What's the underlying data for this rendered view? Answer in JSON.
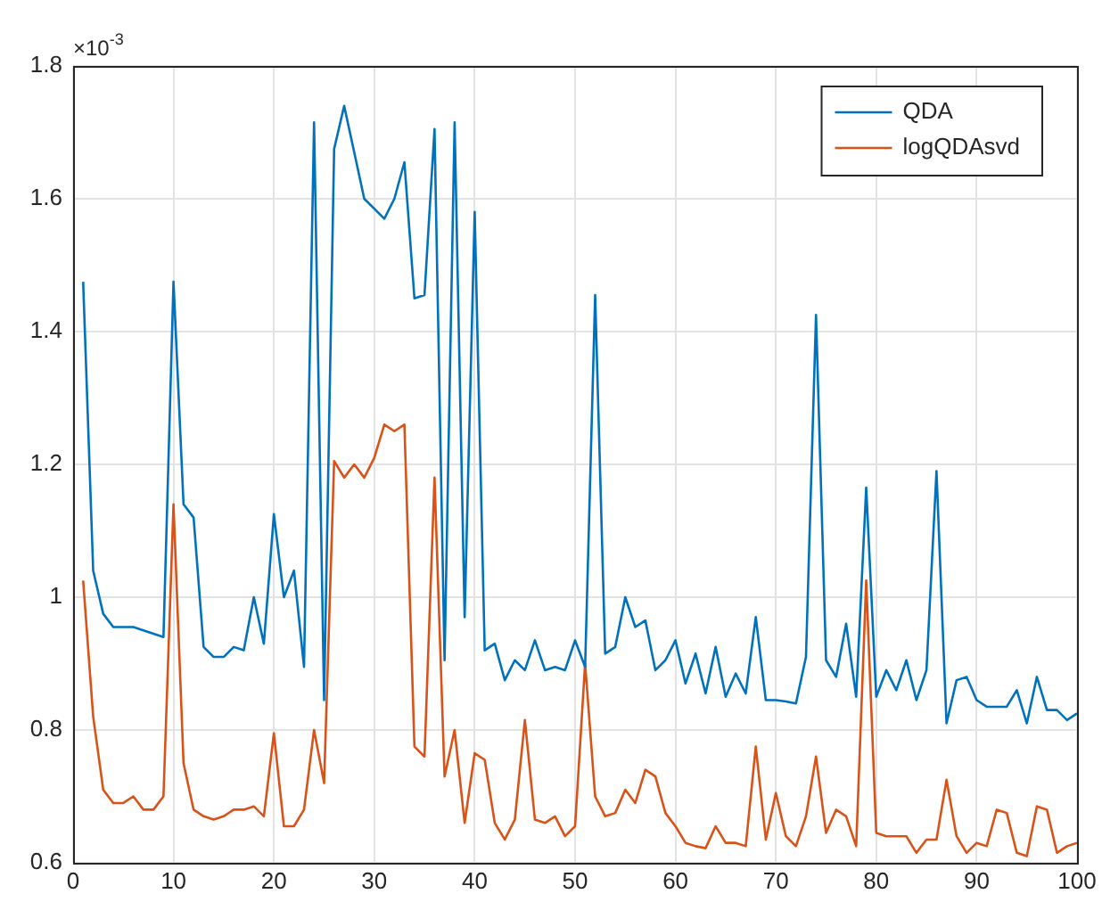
{
  "chart_data": {
    "type": "line",
    "annotations": [
      "×10$^{-3}$"
    ],
    "x": [
      1,
      2,
      3,
      4,
      5,
      6,
      7,
      8,
      9,
      10,
      11,
      12,
      13,
      14,
      15,
      16,
      17,
      18,
      19,
      20,
      21,
      22,
      23,
      24,
      25,
      26,
      27,
      28,
      29,
      30,
      31,
      32,
      33,
      34,
      35,
      36,
      37,
      38,
      39,
      40,
      41,
      42,
      43,
      44,
      45,
      46,
      47,
      48,
      49,
      50,
      51,
      52,
      53,
      54,
      55,
      56,
      57,
      58,
      59,
      60,
      61,
      62,
      63,
      64,
      65,
      66,
      67,
      68,
      69,
      70,
      71,
      72,
      73,
      74,
      75,
      76,
      77,
      78,
      79,
      80,
      81,
      82,
      83,
      84,
      85,
      86,
      87,
      88,
      89,
      90,
      91,
      92,
      93,
      94,
      95,
      96,
      97,
      98,
      99,
      100
    ],
    "series": [
      {
        "name": "QDA",
        "color": "#0072bd",
        "values": [
          1.475,
          1.04,
          0.975,
          0.955,
          0.955,
          0.955,
          0.95,
          0.945,
          0.94,
          1.475,
          1.14,
          1.12,
          0.925,
          0.91,
          0.91,
          0.925,
          0.92,
          1.0,
          0.93,
          1.125,
          1.0,
          1.04,
          0.895,
          1.715,
          0.845,
          1.675,
          1.74,
          1.67,
          1.6,
          1.585,
          1.57,
          1.6,
          1.655,
          1.45,
          1.455,
          1.705,
          0.905,
          1.715,
          0.97,
          1.58,
          0.92,
          0.93,
          0.875,
          0.905,
          0.89,
          0.935,
          0.89,
          0.895,
          0.89,
          0.935,
          0.895,
          1.455,
          0.915,
          0.925,
          1.0,
          0.955,
          0.965,
          0.89,
          0.905,
          0.935,
          0.87,
          0.915,
          0.855,
          0.925,
          0.85,
          0.885,
          0.855,
          0.97,
          0.845,
          0.845,
          0.843,
          0.84,
          0.91,
          1.425,
          0.905,
          0.88,
          0.96,
          0.85,
          1.165,
          0.85,
          0.89,
          0.86,
          0.905,
          0.845,
          0.89,
          1.19,
          0.81,
          0.875,
          0.88,
          0.845,
          0.835,
          0.835,
          0.835,
          0.86,
          0.81,
          0.88,
          0.83,
          0.83,
          0.815,
          0.825
        ]
      },
      {
        "name": "logQDAsvd",
        "color": "#d95319",
        "values": [
          1.025,
          0.82,
          0.71,
          0.69,
          0.69,
          0.7,
          0.68,
          0.68,
          0.7,
          1.14,
          0.75,
          0.68,
          0.67,
          0.665,
          0.67,
          0.68,
          0.68,
          0.685,
          0.67,
          0.795,
          0.655,
          0.655,
          0.68,
          0.8,
          0.72,
          1.205,
          1.18,
          1.2,
          1.18,
          1.21,
          1.26,
          1.25,
          1.26,
          0.775,
          0.76,
          1.18,
          0.73,
          0.8,
          0.66,
          0.765,
          0.755,
          0.66,
          0.635,
          0.665,
          0.815,
          0.665,
          0.66,
          0.67,
          0.64,
          0.655,
          0.9,
          0.7,
          0.67,
          0.675,
          0.71,
          0.69,
          0.74,
          0.73,
          0.675,
          0.655,
          0.63,
          0.625,
          0.622,
          0.655,
          0.63,
          0.63,
          0.625,
          0.775,
          0.635,
          0.705,
          0.64,
          0.625,
          0.67,
          0.76,
          0.645,
          0.68,
          0.67,
          0.625,
          1.025,
          0.645,
          0.64,
          0.64,
          0.64,
          0.615,
          0.635,
          0.635,
          0.725,
          0.64,
          0.615,
          0.63,
          0.625,
          0.68,
          0.675,
          0.615,
          0.61,
          0.685,
          0.68,
          0.615,
          0.625,
          0.63
        ]
      }
    ],
    "xlim": [
      0,
      100
    ],
    "xticks": [
      0,
      10,
      20,
      30,
      40,
      50,
      60,
      70,
      80,
      90,
      100
    ],
    "ylim": [
      0.6,
      1.8
    ],
    "yticks": [
      0.6,
      0.8,
      1,
      1.2,
      1.4,
      1.6,
      1.8
    ],
    "grid": true,
    "legend": "top right",
    "marker": "none",
    "line_style": "solid"
  }
}
